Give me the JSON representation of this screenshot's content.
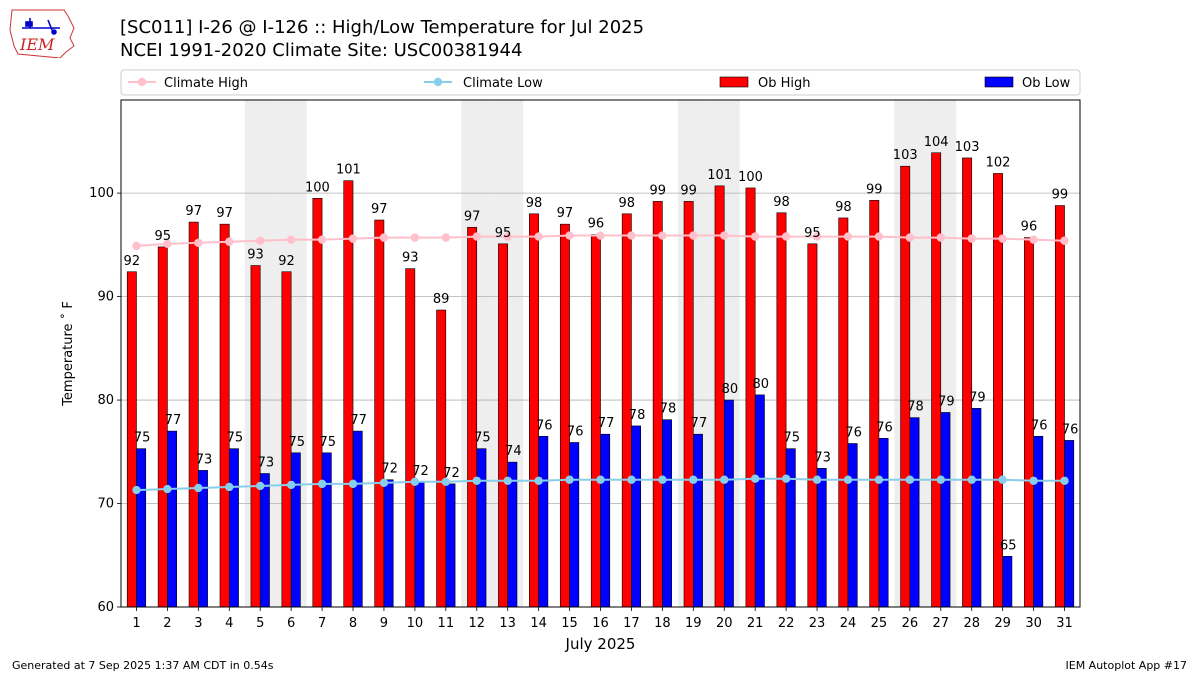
{
  "header": {
    "title_line1": "[SC011] I-26 @ I-126  :: High/Low Temperature for Jul 2025",
    "title_line2": "NCEI 1991-2020 Climate Site: USC00381944"
  },
  "logo": {
    "text": "IEM"
  },
  "footer": {
    "generated": "Generated at 7 Sep 2025 1:37 AM CDT in 0.54s",
    "app": "IEM Autoplot App #17"
  },
  "colors": {
    "ob_high": "#ff0000",
    "ob_low": "#0000ff",
    "climate_high": "#ffc0cb",
    "climate_low": "#87ceeb",
    "weekend_shade": "#eeeeee",
    "grid": "#b0b0b0"
  },
  "chart_data": {
    "type": "bar",
    "xlabel": "July 2025",
    "ylabel": "Temperature ˚ F",
    "ylim": [
      60,
      109
    ],
    "yticks": [
      60,
      70,
      80,
      90,
      100
    ],
    "grid": "horizontal",
    "legend_position": "top",
    "categories": [
      "1",
      "2",
      "3",
      "4",
      "5",
      "6",
      "7",
      "8",
      "9",
      "10",
      "11",
      "12",
      "13",
      "14",
      "15",
      "16",
      "17",
      "18",
      "19",
      "20",
      "21",
      "22",
      "23",
      "24",
      "25",
      "26",
      "27",
      "28",
      "29",
      "30",
      "31"
    ],
    "shaded_days": [
      5,
      6,
      12,
      13,
      19,
      20,
      26,
      27
    ],
    "legend": [
      {
        "label": "Climate High",
        "kind": "line",
        "color": "#ffc0cb"
      },
      {
        "label": "Climate Low",
        "kind": "line",
        "color": "#87ceeb"
      },
      {
        "label": "Ob High",
        "kind": "bar",
        "color": "#ff0000"
      },
      {
        "label": "Ob Low",
        "kind": "bar",
        "color": "#0000ff"
      }
    ],
    "series": [
      {
        "name": "Ob High",
        "type": "bar",
        "values": [
          92.4,
          94.8,
          97.2,
          97.0,
          93.0,
          92.4,
          99.5,
          101.2,
          97.4,
          92.7,
          88.7,
          96.7,
          95.1,
          98.0,
          97.0,
          96.0,
          98.0,
          99.2,
          99.2,
          100.7,
          100.5,
          98.1,
          95.1,
          97.6,
          99.3,
          102.6,
          103.9,
          103.4,
          101.9,
          95.7,
          98.8
        ],
        "labels": [
          "92",
          "95",
          "97",
          "97",
          "93",
          "92",
          "100",
          "101",
          "97",
          "93",
          "89",
          "97",
          "95",
          "98",
          "97",
          "96",
          "98",
          "99",
          "99",
          "101",
          "100",
          "98",
          "95",
          "98",
          "99",
          "103",
          "104",
          "103",
          "102",
          "96",
          "99"
        ]
      },
      {
        "name": "Ob Low",
        "type": "bar",
        "values": [
          75.3,
          77.0,
          73.2,
          75.3,
          72.9,
          74.9,
          74.9,
          77.0,
          72.3,
          72.1,
          71.9,
          75.3,
          74.0,
          76.5,
          75.9,
          76.7,
          77.5,
          78.1,
          76.7,
          80.0,
          80.5,
          75.3,
          73.4,
          75.8,
          76.3,
          78.3,
          78.8,
          79.2,
          64.9,
          76.5,
          76.1
        ],
        "labels": [
          "75",
          "77",
          "73",
          "75",
          "73",
          "75",
          "75",
          "77",
          "72",
          "72",
          "72",
          "75",
          "74",
          "76",
          "76",
          "77",
          "78",
          "78",
          "77",
          "80",
          "80",
          "75",
          "73",
          "76",
          "76",
          "78",
          "79",
          "79",
          "65",
          "76",
          "76"
        ]
      },
      {
        "name": "Climate High",
        "type": "line",
        "values": [
          94.9,
          95.1,
          95.2,
          95.3,
          95.4,
          95.5,
          95.5,
          95.6,
          95.7,
          95.7,
          95.7,
          95.8,
          95.8,
          95.8,
          95.9,
          95.9,
          95.9,
          95.9,
          95.9,
          95.9,
          95.8,
          95.8,
          95.8,
          95.8,
          95.8,
          95.7,
          95.7,
          95.6,
          95.6,
          95.5,
          95.4
        ]
      },
      {
        "name": "Climate Low",
        "type": "line",
        "values": [
          71.3,
          71.4,
          71.5,
          71.6,
          71.7,
          71.8,
          71.9,
          71.9,
          72.0,
          72.1,
          72.1,
          72.2,
          72.2,
          72.2,
          72.3,
          72.3,
          72.3,
          72.3,
          72.3,
          72.3,
          72.4,
          72.4,
          72.3,
          72.3,
          72.3,
          72.3,
          72.3,
          72.3,
          72.3,
          72.2,
          72.2
        ]
      }
    ]
  }
}
